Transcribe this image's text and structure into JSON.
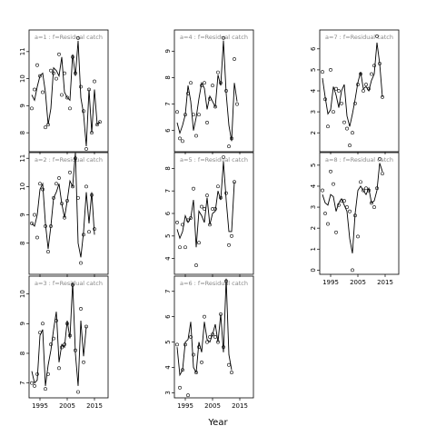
{
  "xlabel": "Year",
  "chart_data": [
    {
      "type": "line",
      "title": "a=1 : f=Residual catch",
      "xlim": [
        1991,
        2020
      ],
      "ylim": [
        7.3,
        11.8
      ],
      "yticks": [
        8,
        9,
        10,
        11
      ],
      "xticks": [
        1995,
        2005,
        2015
      ],
      "fitted": [
        9.4,
        9.2,
        9.7,
        10.1,
        10.2,
        9.5,
        8.3,
        8.9,
        10.4,
        10.3,
        10.1,
        10.8,
        9.5,
        9.3,
        9.2,
        10.9,
        10.1,
        11.4,
        9.3,
        8.7,
        7.5,
        9.6,
        8.0,
        9.6,
        8.3,
        8.4
      ],
      "observed": [
        8.9,
        9.6,
        10.5,
        10.1,
        9.5,
        8.2,
        8.3,
        10.3,
        10.2,
        10.0,
        10.9,
        9.4,
        10.2,
        9.3,
        8.9,
        10.8,
        10.2,
        11.5,
        9.7,
        8.8,
        7.4,
        9.6,
        8.0,
        9.9,
        8.3,
        8.4
      ],
      "observed_x": [
        1992,
        1993,
        1994,
        1995,
        1996,
        1997,
        1998,
        1999,
        2000,
        2001,
        2002,
        2003,
        2004,
        2005,
        2006,
        2007,
        2008,
        2009,
        2010,
        2011,
        2012,
        2013,
        2014,
        2015,
        2016,
        2017
      ]
    },
    {
      "type": "line",
      "title": "a=4 : f=Residual catch",
      "xlim": [
        1991,
        2020
      ],
      "ylim": [
        5.2,
        9.8
      ],
      "yticks": [
        6,
        7,
        8,
        9
      ],
      "xticks": [
        1995,
        2005,
        2015
      ],
      "fitted": [
        6.3,
        5.9,
        6.2,
        6.6,
        7.7,
        7.1,
        6.0,
        6.5,
        7.2,
        7.8,
        7.6,
        6.8,
        7.3,
        7.1,
        6.9,
        8.1,
        7.7,
        9.4,
        7.4,
        6.2,
        5.6,
        7.8,
        7.1
      ],
      "observed": [
        6.7,
        5.7,
        5.6,
        6.6,
        7.4,
        7.8,
        6.6,
        5.8,
        6.6,
        7.7,
        7.8,
        6.3,
        7.2,
        7.7,
        6.9,
        8.2,
        7.8,
        9.5,
        7.5,
        5.4,
        5.7,
        8.7,
        7.0
      ],
      "observed_x": [
        1992,
        1993,
        1994,
        1995,
        1996,
        1997,
        1998,
        1999,
        2000,
        2001,
        2002,
        2003,
        2004,
        2005,
        2006,
        2007,
        2008,
        2009,
        2010,
        2011,
        2012,
        2013,
        2014
      ]
    },
    {
      "type": "line",
      "title": "a=7 : f=Residual catch",
      "xlim": [
        1991,
        2020
      ],
      "ylim": [
        1.1,
        6.9
      ],
      "yticks": [
        2,
        3,
        4,
        5,
        6
      ],
      "xticks": [
        1995,
        2005,
        2015
      ],
      "fitted": [
        4.6,
        3.7,
        2.9,
        3.1,
        4.2,
        3.8,
        3.2,
        4.0,
        4.3,
        2.8,
        2.3,
        2.9,
        3.6,
        4.4,
        4.9,
        4.1,
        4.2,
        4.0,
        4.5,
        4.8,
        6.3,
        5.3,
        3.7
      ],
      "observed": [
        4.9,
        3.6,
        2.3,
        5.0,
        3.0,
        4.1,
        4.0,
        3.4,
        2.5,
        2.2,
        1.4,
        2.0,
        3.4,
        4.3,
        4.8,
        4.0,
        4.3,
        4.1,
        4.8,
        5.2,
        6.6,
        5.3,
        3.7
      ],
      "observed_x": [
        1992,
        1993,
        1994,
        1995,
        1996,
        1997,
        1998,
        1999,
        2000,
        2001,
        2002,
        2003,
        2004,
        2005,
        2006,
        2007,
        2008,
        2009,
        2010,
        2011,
        2012,
        2013,
        2014
      ]
    },
    {
      "type": "line",
      "title": "a=2 : f=Residual catch",
      "xlim": [
        1991,
        2020
      ],
      "ylim": [
        6.9,
        11.2
      ],
      "yticks": [
        8,
        9,
        10,
        11
      ],
      "xticks": [
        1995,
        2005,
        2015
      ],
      "fitted": [
        8.7,
        8.6,
        9.0,
        9.9,
        10.1,
        8.7,
        7.8,
        8.6,
        9.6,
        9.8,
        10.1,
        9.4,
        8.9,
        9.5,
        10.2,
        10.0,
        11.2,
        8.0,
        7.5,
        8.4,
        9.8,
        8.7,
        9.8,
        8.3
      ],
      "observed": [
        8.7,
        9.0,
        8.2,
        10.1,
        9.9,
        8.6,
        7.7,
        8.6,
        9.6,
        10.1,
        10.3,
        9.4,
        8.9,
        9.5,
        10.5,
        10.0,
        11.0,
        9.6,
        7.3,
        8.3,
        10.0,
        8.4,
        9.7,
        8.5
      ],
      "observed_x": [
        1992,
        1993,
        1994,
        1995,
        1996,
        1997,
        1998,
        1999,
        2000,
        2001,
        2002,
        2003,
        2004,
        2005,
        2006,
        2007,
        2008,
        2009,
        2010,
        2011,
        2012,
        2013,
        2014,
        2015
      ]
    },
    {
      "type": "line",
      "title": "a=5 : f=Residual catch",
      "xlim": [
        1991,
        2020
      ],
      "ylim": [
        3.3,
        8.7
      ],
      "yticks": [
        4,
        5,
        6,
        7,
        8
      ],
      "xticks": [
        1995,
        2005,
        2015
      ],
      "fitted": [
        5.3,
        4.9,
        5.2,
        5.9,
        5.6,
        5.8,
        6.6,
        4.5,
        6.1,
        5.9,
        5.6,
        6.7,
        5.5,
        6.0,
        6.1,
        7.0,
        6.6,
        8.3,
        6.6,
        5.2,
        5.2,
        7.4
      ],
      "observed": [
        5.6,
        4.5,
        5.5,
        4.5,
        5.7,
        5.8,
        7.1,
        3.7,
        4.7,
        6.3,
        6.2,
        6.8,
        5.5,
        6.2,
        6.2,
        7.2,
        6.7,
        8.5,
        6.9,
        4.6,
        5.0,
        7.4
      ],
      "observed_x": [
        1992,
        1993,
        1994,
        1995,
        1996,
        1997,
        1998,
        1999,
        2000,
        2001,
        2002,
        2003,
        2004,
        2005,
        2006,
        2007,
        2008,
        2009,
        2010,
        2011,
        2012,
        2013
      ]
    },
    {
      "type": "line",
      "title": "a=8 : f=Residual catch",
      "xlim": [
        1991,
        2020
      ],
      "ylim": [
        -0.2,
        5.6
      ],
      "yticks": [
        0,
        1,
        2,
        3,
        4,
        5
      ],
      "xticks": [
        1995,
        2005,
        2015
      ],
      "fitted": [
        3.6,
        3.2,
        3.1,
        3.6,
        3.5,
        2.8,
        3.2,
        3.4,
        3.1,
        2.8,
        1.5,
        0.8,
        2.7,
        3.8,
        4.0,
        3.8,
        3.6,
        3.9,
        3.2,
        3.3,
        3.8,
        5.1,
        4.7
      ],
      "observed": [
        3.8,
        2.7,
        2.2,
        4.7,
        4.1,
        1.8,
        3.1,
        3.3,
        3.3,
        3.0,
        2.8,
        0.0,
        2.6,
        1.6,
        4.2,
        3.8,
        3.9,
        3.8,
        3.2,
        3.0,
        3.9,
        5.3,
        4.6
      ],
      "observed_x": [
        1992,
        1993,
        1994,
        1995,
        1996,
        1997,
        1998,
        1999,
        2000,
        2001,
        2002,
        2003,
        2004,
        2005,
        2006,
        2007,
        2008,
        2009,
        2010,
        2011,
        2012,
        2013,
        2014
      ]
    },
    {
      "type": "line",
      "title": "a=3 : f=Residual catch",
      "xlim": [
        1991,
        2020
      ],
      "ylim": [
        6.5,
        10.6
      ],
      "yticks": [
        7,
        8,
        9,
        10
      ],
      "xticks": [
        1995,
        2005,
        2015
      ],
      "fitted": [
        7.4,
        7.0,
        7.1,
        8.6,
        8.8,
        6.9,
        7.6,
        8.1,
        8.8,
        9.4,
        7.7,
        8.3,
        8.2,
        9.1,
        8.5,
        10.4,
        8.0,
        6.9,
        9.1,
        7.9,
        8.9
      ],
      "observed": [
        7.0,
        6.9,
        7.3,
        8.7,
        9.0,
        6.8,
        7.3,
        8.3,
        8.5,
        9.1,
        7.5,
        8.2,
        8.3,
        9.0,
        8.6,
        10.3,
        8.1,
        6.7,
        9.5,
        7.7,
        8.9
      ],
      "observed_x": [
        1992,
        1993,
        1994,
        1995,
        1996,
        1997,
        1998,
        1999,
        2000,
        2001,
        2002,
        2003,
        2004,
        2005,
        2006,
        2007,
        2008,
        2009,
        2010,
        2011,
        2012
      ]
    },
    {
      "type": "line",
      "title": "a=6 : f=Residual catch",
      "xlim": [
        1991,
        2020
      ],
      "ylim": [
        2.8,
        7.6
      ],
      "yticks": [
        3,
        4,
        5,
        6,
        7
      ],
      "xticks": [
        1995,
        2005,
        2015
      ],
      "fitted": [
        4.8,
        3.7,
        3.9,
        5.0,
        5.1,
        5.8,
        4.0,
        3.8,
        5.0,
        4.6,
        5.8,
        5.1,
        5.0,
        5.3,
        5.7,
        5.0,
        6.1,
        4.6,
        7.5,
        4.5,
        3.9
      ],
      "observed": [
        4.9,
        3.2,
        3.9,
        4.9,
        2.9,
        5.2,
        4.5,
        3.8,
        4.8,
        4.2,
        6.0,
        5.0,
        5.2,
        5.3,
        5.2,
        5.0,
        6.1,
        4.8,
        7.4,
        4.1,
        3.8
      ],
      "observed_x": [
        1992,
        1993,
        1994,
        1995,
        1996,
        1997,
        1998,
        1999,
        2000,
        2001,
        2002,
        2003,
        2004,
        2005,
        2006,
        2007,
        2008,
        2009,
        2010,
        2011,
        2012
      ]
    }
  ]
}
